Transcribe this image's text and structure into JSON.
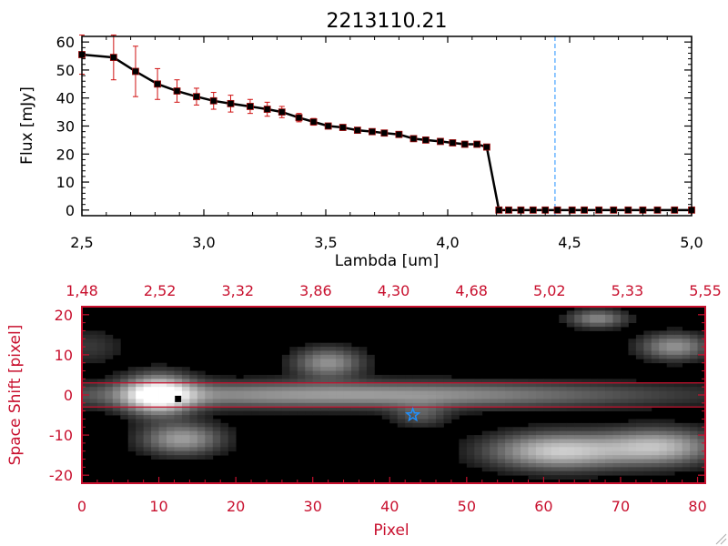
{
  "colors": {
    "spectrum_line": "#000000",
    "error_bars": "#d01010",
    "dashed_marker": "#1e90ff",
    "image_axes": "#c8102e",
    "aperture_lines": "#c8102e",
    "star_marker": "#1e90ff",
    "background": "#ffffff"
  },
  "chart_data": [
    {
      "type": "line",
      "title": "2213110.21",
      "xlabel": "Lambda [um]",
      "ylabel": "Flux [mJy]",
      "xlim": [
        2.5,
        5.0
      ],
      "ylim": [
        -2,
        62
      ],
      "xticks": [
        "2.5",
        "3.0",
        "3.5",
        "4.0",
        "4.5",
        "5.0"
      ],
      "yticks": [
        "0",
        "10",
        "20",
        "30",
        "40",
        "50",
        "60"
      ],
      "grid": false,
      "series": [
        {
          "x": [
            2.5,
            2.63,
            2.72,
            2.81,
            2.89,
            2.97,
            3.04,
            3.11,
            3.19,
            3.26,
            3.32,
            3.39,
            3.45,
            3.51,
            3.57,
            3.63,
            3.69,
            3.74,
            3.8,
            3.86,
            3.91,
            3.97,
            4.02,
            4.07,
            4.12,
            4.16,
            4.21,
            4.25,
            4.3,
            4.35,
            4.4,
            4.45,
            4.51,
            4.56,
            4.62,
            4.68,
            4.74,
            4.8,
            4.86,
            4.93,
            5.0
          ],
          "y": [
            55.5,
            54.5,
            49.5,
            45.0,
            42.5,
            40.5,
            39.0,
            38.0,
            37.0,
            36.0,
            35.0,
            33.0,
            31.5,
            30.0,
            29.5,
            28.5,
            28.0,
            27.5,
            27.0,
            25.5,
            25.0,
            24.5,
            24.0,
            23.5,
            23.5,
            22.5,
            0,
            0,
            0,
            0,
            0,
            0,
            0,
            0,
            0,
            0,
            0,
            0,
            0,
            0,
            0
          ],
          "yerr": [
            7,
            8,
            9,
            5.5,
            4,
            3,
            3,
            3,
            2.5,
            2.5,
            2,
            1.5,
            1.2,
            1,
            1,
            1,
            1,
            1,
            1,
            1,
            1,
            1,
            1,
            1,
            1,
            1,
            0,
            0,
            0,
            0,
            0,
            0,
            0,
            0,
            0,
            0,
            0,
            0,
            0,
            0,
            0
          ]
        }
      ],
      "annotations": [
        {
          "type": "vline",
          "x": 4.44,
          "style": "dashed"
        }
      ]
    },
    {
      "type": "heatmap",
      "xlabel": "Pixel",
      "ylabel": "Space Shift [pixel]",
      "xlim": [
        0,
        81
      ],
      "ylim": [
        -22,
        22
      ],
      "xticks": [
        "0",
        "10",
        "20",
        "30",
        "40",
        "50",
        "60",
        "70",
        "80"
      ],
      "yticks": [
        "20",
        "10",
        "0",
        "-10",
        "-20"
      ],
      "top_ticks": [
        "1.48",
        "2.52",
        "3.32",
        "3.86",
        "4.30",
        "4.68",
        "5.02",
        "5.33",
        "5.55"
      ],
      "aperture_lines": [
        3,
        -3
      ],
      "star_marker": {
        "x": 43,
        "y": -5
      },
      "peak_marker": {
        "x": 12.5,
        "y": -1
      },
      "blobs": [
        {
          "x": 10,
          "y": 0,
          "sx": 3,
          "sy": 3.2,
          "amp": 1.0
        },
        {
          "x": 35,
          "y": 0,
          "sx": 27,
          "sy": 2.2,
          "amp": 0.55
        },
        {
          "x": 13,
          "y": -11,
          "sx": 3.5,
          "sy": 2.6,
          "amp": 0.55
        },
        {
          "x": 32,
          "y": 8,
          "sx": 3,
          "sy": 2.5,
          "amp": 0.5
        },
        {
          "x": 62,
          "y": -14,
          "sx": 6,
          "sy": 3,
          "amp": 0.75
        },
        {
          "x": 75,
          "y": -13,
          "sx": 5,
          "sy": 3,
          "amp": 0.65
        },
        {
          "x": 77,
          "y": 12,
          "sx": 3,
          "sy": 2.2,
          "amp": 0.5
        },
        {
          "x": 67,
          "y": 19,
          "sx": 2.5,
          "sy": 1.5,
          "amp": 0.45
        },
        {
          "x": 44,
          "y": -5,
          "sx": 2.5,
          "sy": 2,
          "amp": 0.25
        },
        {
          "x": 1,
          "y": 12,
          "sx": 3,
          "sy": 3,
          "amp": 0.15
        }
      ]
    }
  ]
}
